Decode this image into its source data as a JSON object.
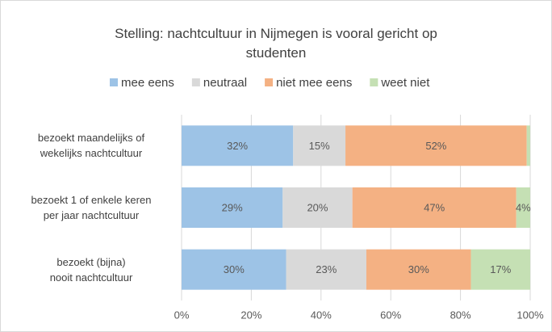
{
  "chart_data": {
    "type": "stacked-bar-horizontal",
    "title": "Stelling: nachtcultuur in Nijmegen is vooral gericht op studenten",
    "categories": [
      "bezoekt maandelijks of\nwekelijks nachtcultuur",
      "bezoekt 1 of enkele keren\nper jaar nachtcultuur",
      "bezoekt (bijna)\nnooit nachtcultuur"
    ],
    "series": [
      {
        "name": "mee eens",
        "color": "#9dc3e6",
        "values": [
          32,
          29,
          30
        ],
        "value_labels": [
          "32%",
          "29%",
          "30%"
        ]
      },
      {
        "name": "neutraal",
        "color": "#d9d9d9",
        "values": [
          15,
          20,
          23
        ],
        "value_labels": [
          "15%",
          "20%",
          "23%"
        ]
      },
      {
        "name": "niet mee eens",
        "color": "#f4b183",
        "values": [
          52,
          47,
          30
        ],
        "value_labels": [
          "52%",
          "47%",
          "30%"
        ]
      },
      {
        "name": "weet niet",
        "color": "#c5e0b4",
        "values": [
          1,
          4,
          17
        ],
        "value_labels": [
          null,
          "4%",
          "17%"
        ]
      }
    ],
    "xlim": [
      0,
      100
    ],
    "xticks": [
      {
        "value": 0,
        "label": "0%"
      },
      {
        "value": 20,
        "label": "20%"
      },
      {
        "value": 40,
        "label": "40%"
      },
      {
        "value": 60,
        "label": "60%"
      },
      {
        "value": 80,
        "label": "80%"
      },
      {
        "value": 100,
        "label": "100%"
      }
    ],
    "grid": true,
    "legend": "top"
  }
}
